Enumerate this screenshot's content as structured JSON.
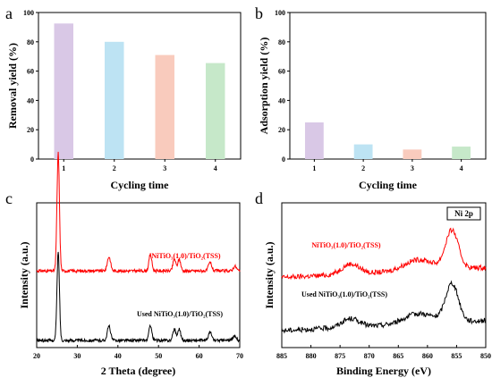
{
  "colors": {
    "bar1": "#d9c8e6",
    "bar2": "#bde3f3",
    "bar3": "#f9cbbd",
    "bar4": "#c6e8c9",
    "red": "#ff0000",
    "black": "#000000"
  },
  "chart_data": [
    {
      "panel": "a",
      "type": "bar",
      "categories": [
        "1",
        "2",
        "3",
        "4"
      ],
      "values": [
        92.5,
        80,
        71,
        65.5
      ],
      "xlabel": "Cycling time",
      "ylabel": "Removal yield (%)",
      "ylim": [
        0,
        100
      ],
      "yticks": [
        "0",
        "20",
        "40",
        "60",
        "80",
        "100"
      ]
    },
    {
      "panel": "b",
      "type": "bar",
      "categories": [
        "1",
        "2",
        "3",
        "4"
      ],
      "values": [
        25,
        10,
        6.5,
        8.5
      ],
      "xlabel": "Cycling time",
      "ylabel": "Adsorption yield (%)",
      "ylim": [
        0,
        100
      ],
      "yticks": [
        "0",
        "20",
        "40",
        "60",
        "80",
        "100"
      ]
    },
    {
      "panel": "c",
      "type": "line",
      "xlabel": "2 Theta (degree)",
      "ylabel": "Intensity (a.u.)",
      "xlim": [
        20,
        70
      ],
      "xticks": [
        "20",
        "30",
        "40",
        "50",
        "60",
        "70"
      ],
      "series": [
        {
          "name": "NiTiO₃(1.0)/TiO₂(TSS)",
          "baseline": 0.62,
          "peaks": [
            [
              25.3,
              1.0,
              0.3
            ],
            [
              37.8,
              0.12,
              0.4
            ],
            [
              48.0,
              0.14,
              0.35
            ],
            [
              53.9,
              0.1,
              0.35
            ],
            [
              55.1,
              0.1,
              0.35
            ],
            [
              62.7,
              0.07,
              0.4
            ],
            [
              68.8,
              0.04,
              0.4
            ]
          ]
        },
        {
          "name": "Used NiTiO₃(1.0)/TiO₂(TSS)",
          "baseline": 0.0,
          "peaks": [
            [
              25.3,
              0.75,
              0.3
            ],
            [
              37.8,
              0.12,
              0.4
            ],
            [
              48.0,
              0.13,
              0.35
            ],
            [
              53.9,
              0.1,
              0.35
            ],
            [
              55.1,
              0.1,
              0.35
            ],
            [
              62.7,
              0.07,
              0.4
            ],
            [
              68.8,
              0.04,
              0.4
            ]
          ]
        }
      ]
    },
    {
      "panel": "d",
      "type": "line",
      "xlabel": "Binding Energy (eV)",
      "ylabel": "Intensity (a.u.)",
      "xlim": [
        885,
        850
      ],
      "xticks": [
        "885",
        "880",
        "875",
        "870",
        "865",
        "860",
        "855",
        "850"
      ],
      "legend": "Ni 2p",
      "series": [
        {
          "name": "NiTiO₃(1.0)/TiO₂(TSS)",
          "baseline": 0.52,
          "peaks": [
            [
              873.2,
              0.12,
              1.5
            ],
            [
              861.5,
              0.13,
              2.5
            ],
            [
              855.8,
              0.45,
              1.1
            ]
          ]
        },
        {
          "name": "Used NiTiO₃(1.0)/TiO₂(TSS)",
          "baseline": 0.0,
          "peaks": [
            [
              873.2,
              0.1,
              1.5
            ],
            [
              861.5,
              0.12,
              2.5
            ],
            [
              855.8,
              0.45,
              1.1
            ]
          ]
        }
      ]
    }
  ]
}
